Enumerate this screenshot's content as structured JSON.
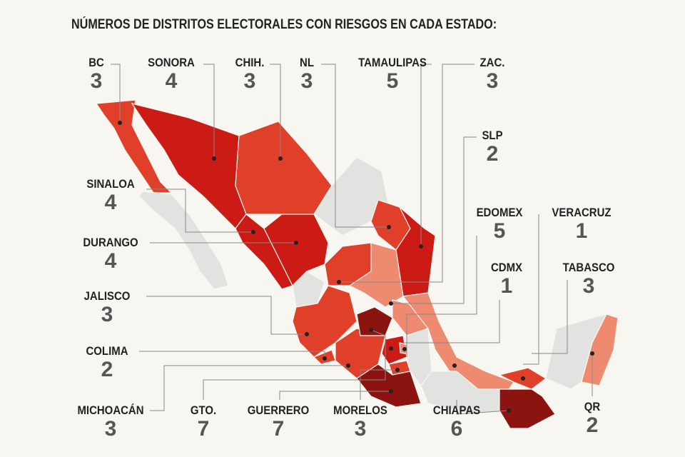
{
  "title": "NÚMEROS DE DISTRITOS ELECTORALES CON RIESGOS EN CADA ESTADO:",
  "states": [
    {
      "name": "BC",
      "count": 3
    },
    {
      "name": "SONORA",
      "count": 4
    },
    {
      "name": "CHIH.",
      "count": 3
    },
    {
      "name": "NL",
      "count": 3
    },
    {
      "name": "TAMAULIPAS",
      "count": 5
    },
    {
      "name": "ZAC.",
      "count": 3
    },
    {
      "name": "SLP",
      "count": 2
    },
    {
      "name": "SINALOA",
      "count": 4
    },
    {
      "name": "DURANGO",
      "count": 4
    },
    {
      "name": "EDOMEX",
      "count": 5
    },
    {
      "name": "VERACRUZ",
      "count": 1
    },
    {
      "name": "CDMX",
      "count": 1
    },
    {
      "name": "TABASCO",
      "count": 3
    },
    {
      "name": "JALISCO",
      "count": 3
    },
    {
      "name": "COLIMA",
      "count": 2
    },
    {
      "name": "QR",
      "count": 2
    },
    {
      "name": "MICHOACÁN",
      "count": 3
    },
    {
      "name": "GTO.",
      "count": 7
    },
    {
      "name": "GUERRERO",
      "count": 7
    },
    {
      "name": "MORELOS",
      "count": 3
    },
    {
      "name": "CHIAPAS",
      "count": 6
    }
  ]
}
